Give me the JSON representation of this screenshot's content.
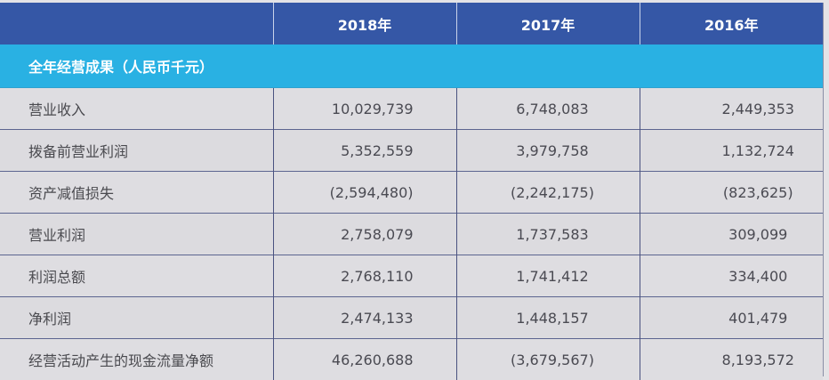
{
  "table": {
    "columns": [
      "",
      "2018年",
      "2017年",
      "2016年"
    ],
    "section_title": "全年经营成果（人民币千元）",
    "rows": [
      {
        "label": "营业收入",
        "y2018": "10,029,739",
        "y2017": "6,748,083",
        "y2016": "2,449,353"
      },
      {
        "label": "拨备前营业利润",
        "y2018": "5,352,559",
        "y2017": "3,979,758",
        "y2016": "1,132,724"
      },
      {
        "label": "资产减值损失",
        "y2018": "(2,594,480)",
        "y2017": "(2,242,175)",
        "y2016": "(823,625)"
      },
      {
        "label": "营业利润",
        "y2018": "2,758,079",
        "y2017": "1,737,583",
        "y2016": "309,099"
      },
      {
        "label": "利润总额",
        "y2018": "2,768,110",
        "y2017": "1,741,412",
        "y2016": "334,400"
      },
      {
        "label": "净利润",
        "y2018": "2,474,133",
        "y2017": "1,448,157",
        "y2016": "401,479"
      },
      {
        "label": "经营活动产生的现金流量净额",
        "y2018": "46,260,688",
        "y2017": "(3,679,567)",
        "y2016": "8,193,572"
      }
    ]
  },
  "colors": {
    "header_bg": "#3557a6",
    "section_bg": "#29b1e3",
    "body_bg": "#dcdbdf",
    "grid_line": "#4a5280"
  }
}
